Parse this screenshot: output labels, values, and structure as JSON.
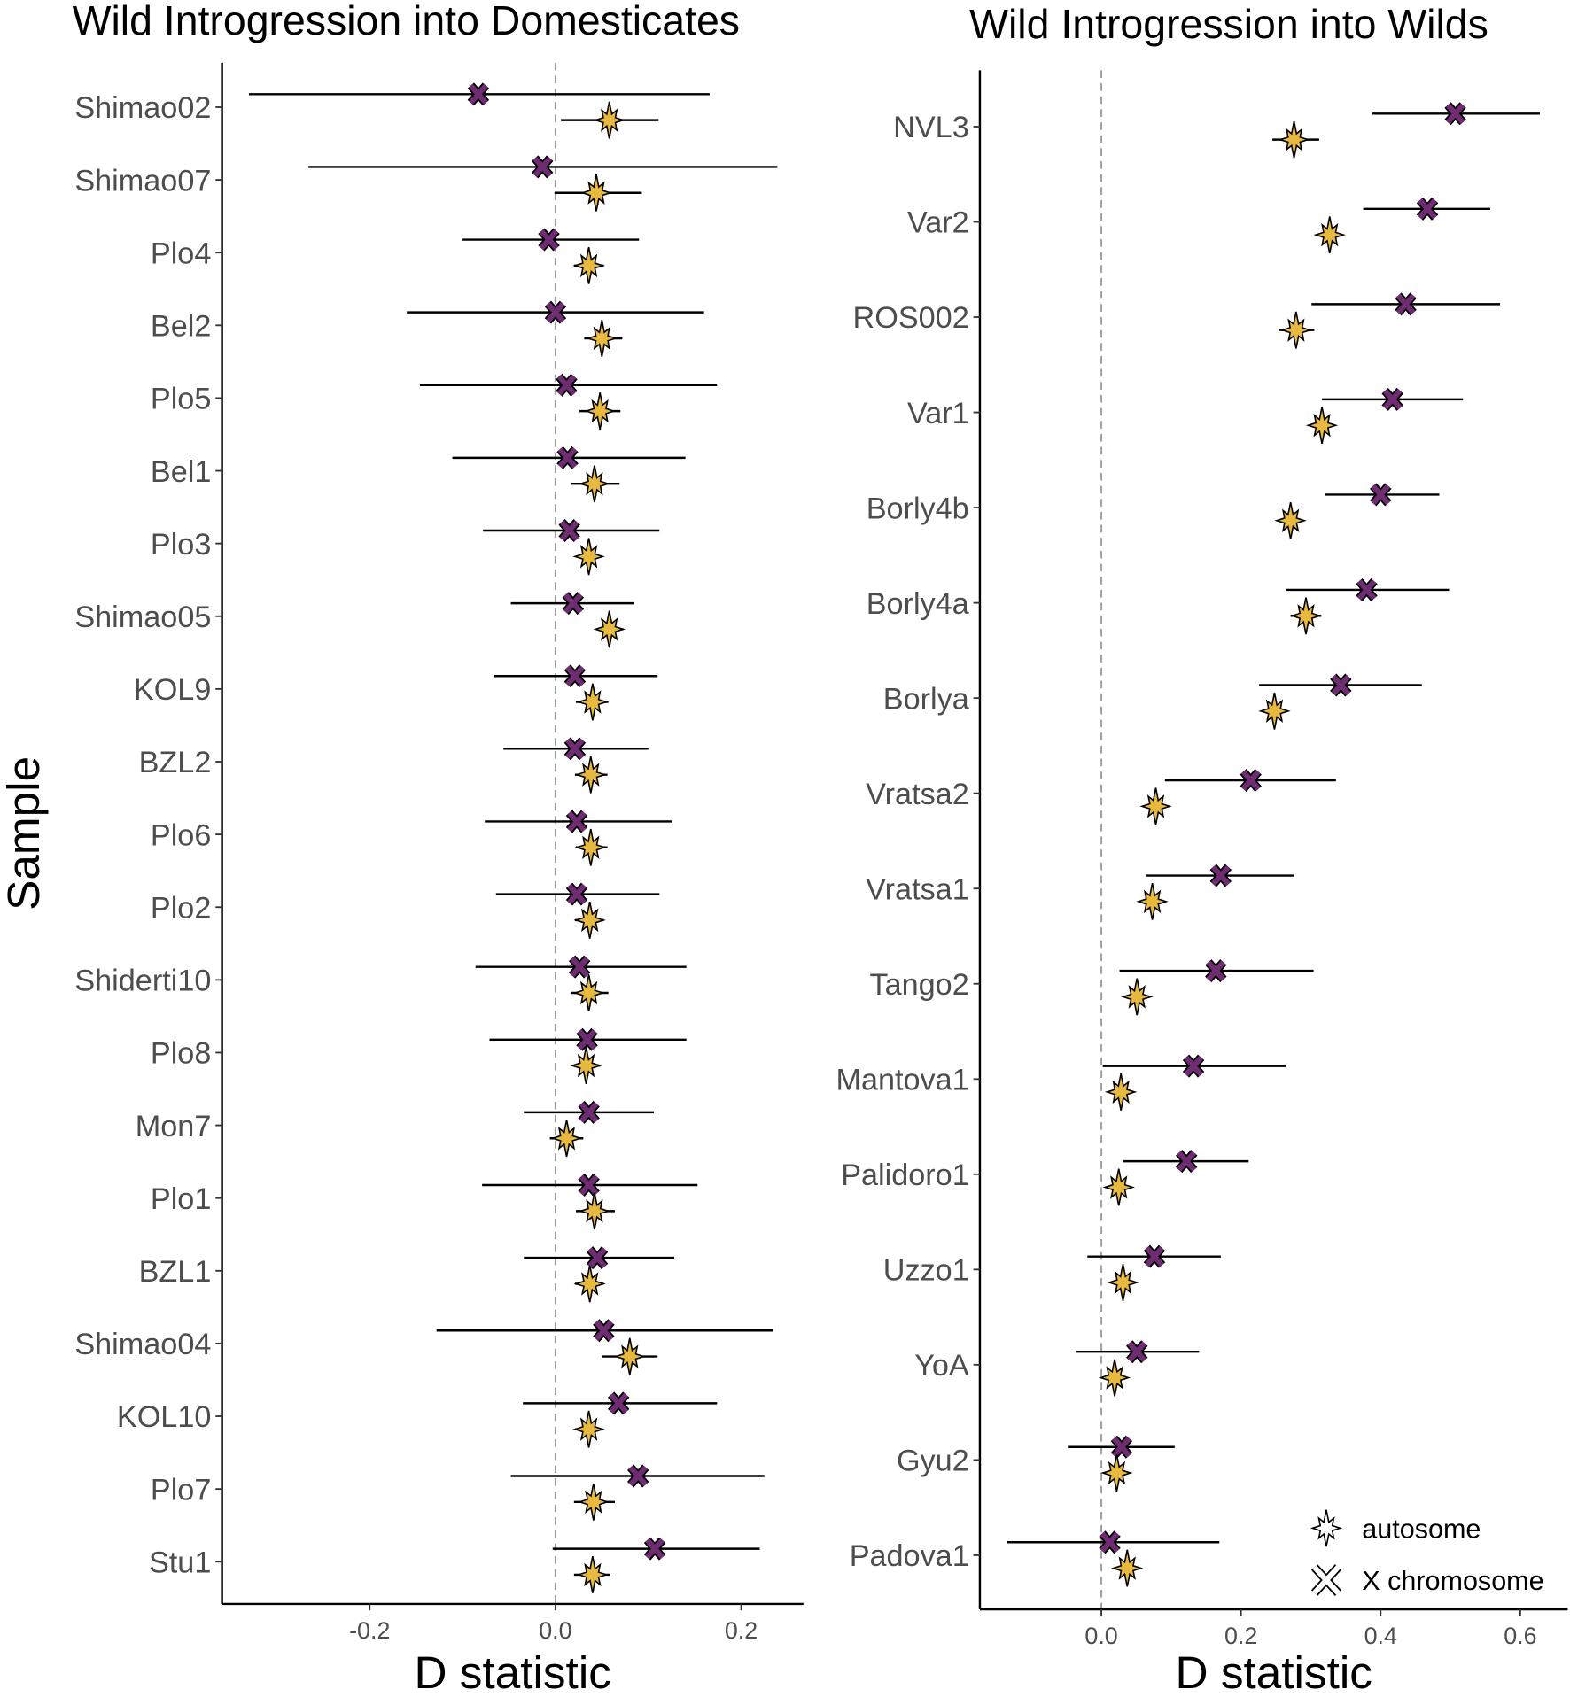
{
  "chart_data": [
    {
      "type": "scatter",
      "title": "Wild Introgression into Domesticates",
      "xlabel": "D statistic",
      "ylabel": "Sample",
      "xlim": [
        -0.359,
        0.267
      ],
      "xticks": [
        "-0.2",
        "0.0",
        "0.2"
      ],
      "xtick_values": [
        -0.2,
        0.0,
        0.2
      ],
      "reference_line": 0.0,
      "categories": [
        "Shimao02",
        "Shimao07",
        "Plo4",
        "Bel2",
        "Plo5",
        "Bel1",
        "Plo3",
        "Shimao05",
        "KOL9",
        "BZL2",
        "Plo6",
        "Plo2",
        "Shiderti10",
        "Plo8",
        "Mon7",
        "Plo1",
        "BZL1",
        "Shimao04",
        "KOL10",
        "Plo7",
        "Stu1"
      ],
      "series": [
        {
          "name": "X chromosome",
          "values": [
            -0.083,
            -0.014,
            -0.007,
            0.0,
            0.012,
            0.013,
            0.015,
            0.019,
            0.021,
            0.021,
            0.023,
            0.023,
            0.026,
            0.034,
            0.036,
            0.036,
            0.045,
            0.052,
            0.068,
            0.089,
            0.107
          ],
          "lower": [
            -0.33,
            -0.266,
            -0.1,
            -0.16,
            -0.146,
            -0.111,
            -0.078,
            -0.048,
            -0.066,
            -0.056,
            -0.076,
            -0.064,
            -0.086,
            -0.071,
            -0.034,
            -0.079,
            -0.034,
            -0.128,
            -0.035,
            -0.048,
            -0.003
          ],
          "upper": [
            0.166,
            0.239,
            0.09,
            0.16,
            0.174,
            0.14,
            0.112,
            0.085,
            0.11,
            0.1,
            0.126,
            0.112,
            0.141,
            0.141,
            0.106,
            0.153,
            0.128,
            0.234,
            0.174,
            0.225,
            0.22
          ]
        },
        {
          "name": "autosome",
          "values": [
            0.058,
            0.044,
            0.036,
            0.05,
            0.048,
            0.042,
            0.036,
            0.058,
            0.04,
            0.038,
            0.038,
            0.037,
            0.036,
            0.033,
            0.012,
            0.042,
            0.037,
            0.08,
            0.036,
            0.041,
            0.04
          ],
          "lower": [
            0.006,
            -0.001,
            0.02,
            0.031,
            0.026,
            0.017,
            0.022,
            0.044,
            0.022,
            0.021,
            0.022,
            0.021,
            0.017,
            0.02,
            -0.006,
            0.022,
            0.021,
            0.05,
            0.021,
            0.02,
            0.02
          ],
          "upper": [
            0.111,
            0.093,
            0.052,
            0.072,
            0.07,
            0.069,
            0.05,
            0.073,
            0.057,
            0.056,
            0.056,
            0.052,
            0.057,
            0.048,
            0.03,
            0.064,
            0.052,
            0.11,
            0.051,
            0.064,
            0.059
          ]
        }
      ]
    },
    {
      "type": "scatter",
      "title": "Wild Introgression into Wilds",
      "xlabel": "D statistic",
      "ylabel": "",
      "xlim": [
        -0.174,
        0.668
      ],
      "xticks": [
        "0.0",
        "0.2",
        "0.4",
        "0.6"
      ],
      "xtick_values": [
        0.0,
        0.2,
        0.4,
        0.6
      ],
      "reference_line": 0.0,
      "legend": {
        "position": "bottom-right",
        "entries": [
          "autosome",
          "X chromosome"
        ]
      },
      "categories": [
        "NVL3",
        "Var2",
        "ROS002",
        "Var1",
        "Borly4b",
        "Borly4a",
        "Borlya",
        "Vratsa2",
        "Vratsa1",
        "Tango2",
        "Mantova1",
        "Palidoro1",
        "Uzzo1",
        "YoA",
        "Gyu2",
        "Padova1"
      ],
      "series": [
        {
          "name": "X chromosome",
          "values": [
            0.507,
            0.467,
            0.436,
            0.417,
            0.4,
            0.38,
            0.343,
            0.214,
            0.171,
            0.164,
            0.132,
            0.122,
            0.076,
            0.051,
            0.029,
            0.012
          ],
          "lower": [
            0.388,
            0.375,
            0.301,
            0.316,
            0.321,
            0.264,
            0.226,
            0.091,
            0.064,
            0.026,
            0.002,
            0.031,
            -0.02,
            -0.036,
            -0.048,
            -0.135
          ],
          "upper": [
            0.628,
            0.557,
            0.571,
            0.518,
            0.484,
            0.498,
            0.459,
            0.336,
            0.276,
            0.304,
            0.265,
            0.211,
            0.171,
            0.14,
            0.105,
            0.169
          ]
        },
        {
          "name": "autosome",
          "values": [
            0.276,
            0.327,
            0.279,
            0.316,
            0.271,
            0.293,
            0.248,
            0.078,
            0.073,
            0.051,
            0.028,
            0.025,
            0.031,
            0.019,
            0.022,
            0.037
          ],
          "lower": [
            0.245,
            0.316,
            0.254,
            0.302,
            0.26,
            0.271,
            0.234,
            0.065,
            0.06,
            0.039,
            0.016,
            0.012,
            0.017,
            0.005,
            0.009,
            0.022
          ],
          "upper": [
            0.312,
            0.338,
            0.305,
            0.33,
            0.284,
            0.315,
            0.264,
            0.09,
            0.085,
            0.064,
            0.04,
            0.037,
            0.045,
            0.033,
            0.036,
            0.051
          ]
        }
      ]
    }
  ],
  "colors": {
    "autosome": "#E8B93F",
    "x_chromosome": "#6F2C72",
    "ref_line": "#9e9e9e"
  }
}
